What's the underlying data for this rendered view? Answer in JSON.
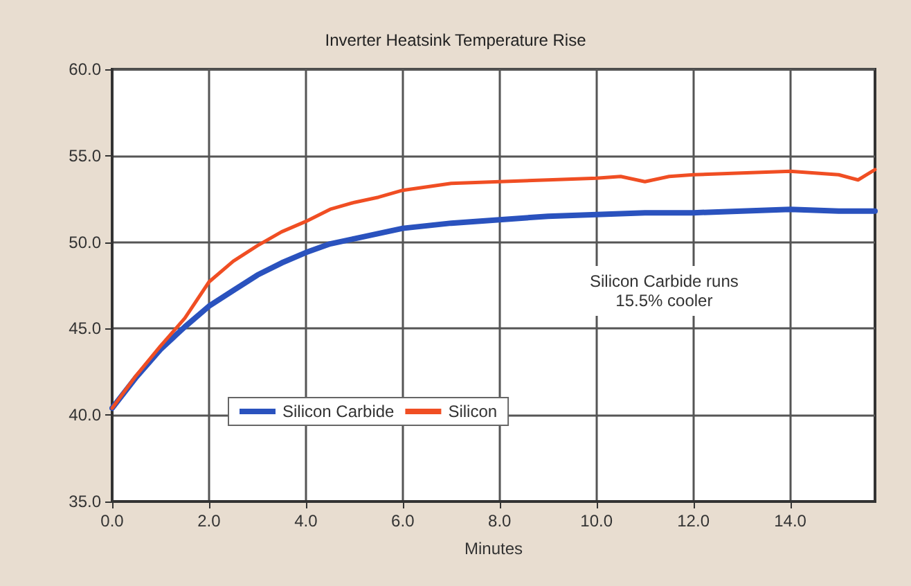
{
  "chart_data": {
    "type": "line",
    "title": "Inverter Heatsink Temperature Rise",
    "xlabel": "Minutes",
    "xlim": [
      0,
      15.75
    ],
    "xticks": [
      {
        "value": 0,
        "label": "0.0"
      },
      {
        "value": 2,
        "label": "2.0"
      },
      {
        "value": 4,
        "label": "4.0"
      },
      {
        "value": 6,
        "label": "6.0"
      },
      {
        "value": 8,
        "label": "8.0"
      },
      {
        "value": 10,
        "label": "10.0"
      },
      {
        "value": 12,
        "label": "12.0"
      },
      {
        "value": 14,
        "label": "14.0"
      }
    ],
    "ylim": [
      35,
      60
    ],
    "yticks": [
      {
        "value": 35,
        "label": "35.0"
      },
      {
        "value": 40,
        "label": "40.0"
      },
      {
        "value": 45,
        "label": "45.0"
      },
      {
        "value": 50,
        "label": "50.0"
      },
      {
        "value": 55,
        "label": "55.0"
      },
      {
        "value": 60,
        "label": "60.0"
      }
    ],
    "grid": true,
    "legend": "bottom left",
    "marker": "none",
    "line_style": "solid",
    "annotations": [
      "Silicon Carbide runs\n15.5% cooler"
    ],
    "series": [
      {
        "name": "Silicon Carbide",
        "color": "#2a52be",
        "x": [
          0,
          0.5,
          1,
          1.5,
          2,
          2.5,
          3,
          3.5,
          4,
          4.5,
          5,
          5.5,
          6,
          7,
          8,
          9,
          10,
          11,
          12,
          13,
          14,
          15,
          15.75
        ],
        "values": [
          40.4,
          42.2,
          43.8,
          45.1,
          46.3,
          47.2,
          48.1,
          48.8,
          49.4,
          49.9,
          50.2,
          50.5,
          50.8,
          51.1,
          51.3,
          51.5,
          51.6,
          51.7,
          51.7,
          51.8,
          51.9,
          51.8,
          51.8
        ]
      },
      {
        "name": "Silicon",
        "color": "#f04e23",
        "x": [
          0,
          0.5,
          1,
          1.5,
          2,
          2.5,
          3,
          3.5,
          4,
          4.5,
          5,
          5.5,
          6,
          6.5,
          7,
          8,
          9,
          10,
          10.5,
          11,
          11.5,
          12,
          13,
          14,
          14.5,
          15,
          15.4,
          15.75
        ],
        "values": [
          40.4,
          42.3,
          44.0,
          45.6,
          47.7,
          48.9,
          49.8,
          50.6,
          51.2,
          51.9,
          52.3,
          52.6,
          53.0,
          53.2,
          53.4,
          53.5,
          53.6,
          53.7,
          53.8,
          53.5,
          53.8,
          53.9,
          54.0,
          54.1,
          54.0,
          53.9,
          53.6,
          54.2
        ]
      }
    ]
  }
}
